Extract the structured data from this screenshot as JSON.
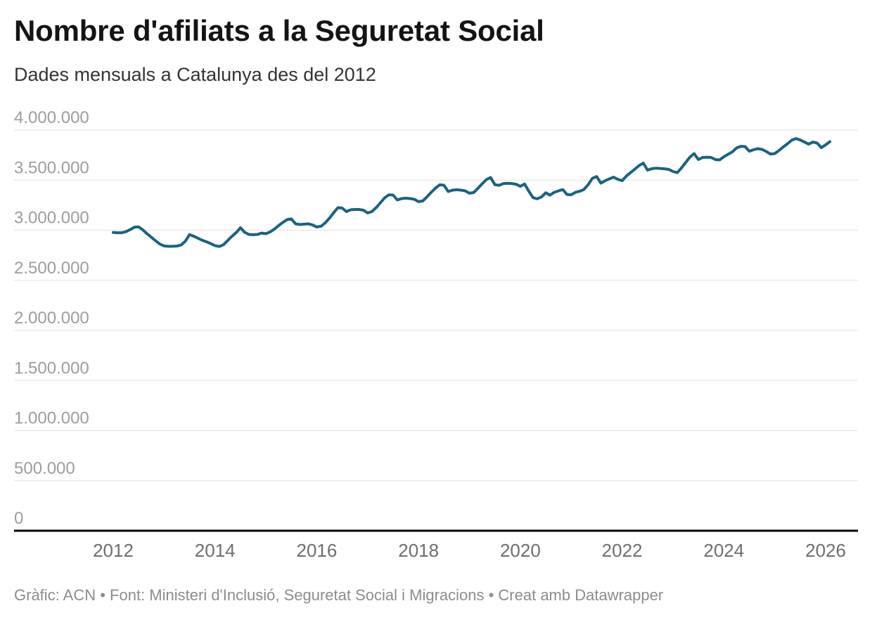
{
  "header": {
    "title": "Nombre d'afiliats a la Seguretat Social",
    "subtitle": "Dades mensuals a Catalunya des del 2012"
  },
  "footer": {
    "text": "Gràfic: ACN • Font: Ministeri d'Inclusió, Seguretat Social i Migracions • Creat amb Datawrapper"
  },
  "chart_data": {
    "type": "line",
    "title": "Nombre d'afiliats a la Seguretat Social",
    "subtitle": "Dades mensuals a Catalunya des del 2012",
    "x_start": "2012-01",
    "x_end": "2026-02",
    "frequency": "monthly",
    "ylim": [
      0,
      4000000
    ],
    "grid": true,
    "legend": "none",
    "line_color": "#196380",
    "axis_line_color": "#000000",
    "grid_color": "#e6e6e6",
    "y_ticks": [
      {
        "value": 4000000,
        "label": "4.000.000"
      },
      {
        "value": 3500000,
        "label": "3.500.000"
      },
      {
        "value": 3000000,
        "label": "3.000.000"
      },
      {
        "value": 2500000,
        "label": "2.500.000"
      },
      {
        "value": 2000000,
        "label": "2.000.000"
      },
      {
        "value": 1500000,
        "label": "1.500.000"
      },
      {
        "value": 1000000,
        "label": "1.000.000"
      },
      {
        "value": 500000,
        "label": "500.000"
      },
      {
        "value": 0,
        "label": "0"
      }
    ],
    "x_ticks": [
      {
        "year": 2012,
        "label": "2012"
      },
      {
        "year": 2014,
        "label": "2014"
      },
      {
        "year": 2016,
        "label": "2016"
      },
      {
        "year": 2018,
        "label": "2018"
      },
      {
        "year": 2020,
        "label": "2020"
      },
      {
        "year": 2022,
        "label": "2022"
      },
      {
        "year": 2024,
        "label": "2024"
      },
      {
        "year": 2026,
        "label": "2026"
      }
    ],
    "values": [
      2978000,
      2975000,
      2975000,
      2985000,
      3006000,
      3031000,
      3034000,
      3003000,
      2964000,
      2929000,
      2894000,
      2862000,
      2843000,
      2839000,
      2839000,
      2842000,
      2852000,
      2890000,
      2956000,
      2940000,
      2920000,
      2900000,
      2884000,
      2866000,
      2846000,
      2838000,
      2855000,
      2897000,
      2940000,
      2976000,
      3025000,
      2979000,
      2958000,
      2955000,
      2958000,
      2972000,
      2965000,
      2983000,
      3011000,
      3046000,
      3078000,
      3106000,
      3113000,
      3064000,
      3057000,
      3060000,
      3064000,
      3053000,
      3032000,
      3039000,
      3074000,
      3120000,
      3176000,
      3225000,
      3221000,
      3186000,
      3204000,
      3207000,
      3207000,
      3200000,
      3172000,
      3186000,
      3225000,
      3274000,
      3323000,
      3354000,
      3351000,
      3302000,
      3316000,
      3320000,
      3316000,
      3309000,
      3285000,
      3292000,
      3334000,
      3379000,
      3421000,
      3453000,
      3449000,
      3386000,
      3400000,
      3404000,
      3400000,
      3393000,
      3369000,
      3376000,
      3418000,
      3463000,
      3505000,
      3526000,
      3455000,
      3448000,
      3466000,
      3469000,
      3466000,
      3459000,
      3438000,
      3462000,
      3390000,
      3325000,
      3314000,
      3332000,
      3374000,
      3350000,
      3378000,
      3392000,
      3406000,
      3357000,
      3354000,
      3378000,
      3389000,
      3406000,
      3455000,
      3518000,
      3536000,
      3470000,
      3494000,
      3512000,
      3530000,
      3508000,
      3494000,
      3540000,
      3575000,
      3610000,
      3645000,
      3670000,
      3600000,
      3614000,
      3620000,
      3617000,
      3613000,
      3607000,
      3586000,
      3575000,
      3621000,
      3677000,
      3730000,
      3765000,
      3705000,
      3726000,
      3729000,
      3726000,
      3705000,
      3702000,
      3733000,
      3758000,
      3782000,
      3821000,
      3838000,
      3835000,
      3789000,
      3803000,
      3814000,
      3807000,
      3786000,
      3761000,
      3765000,
      3796000,
      3831000,
      3863000,
      3898000,
      3915000,
      3901000,
      3880000,
      3859000,
      3880000,
      3870000,
      3824000,
      3852000,
      3884000
    ]
  }
}
